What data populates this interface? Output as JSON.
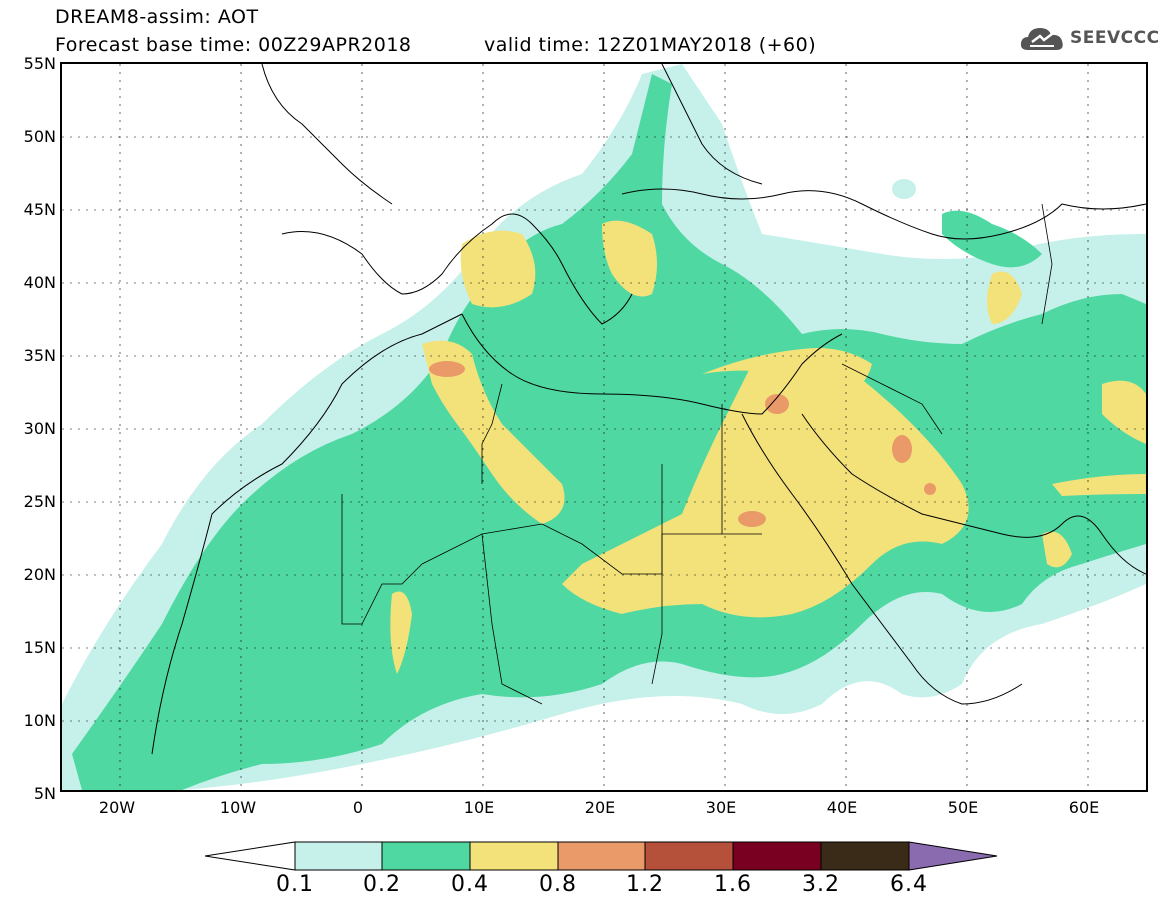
{
  "header": {
    "title": "DREAM8-assim: AOT",
    "base_time": "Forecast base time: 00Z29APR2018",
    "valid_time": "valid time: 12Z01MAY2018 (+60)"
  },
  "logo": {
    "text": "SEEVCCC",
    "icon": "cloud-icon"
  },
  "map": {
    "lat_labels": [
      "55N",
      "50N",
      "45N",
      "40N",
      "35N",
      "30N",
      "25N",
      "20N",
      "15N",
      "10N",
      "5N"
    ],
    "lon_labels": [
      "20W",
      "10W",
      "0",
      "10E",
      "20E",
      "30E",
      "40E",
      "50E",
      "60E"
    ],
    "lon_range": [
      -25,
      65
    ],
    "lat_range": [
      5,
      55
    ]
  },
  "colorbar": {
    "labels": [
      "0.1",
      "0.2",
      "0.4",
      "0.8",
      "1.2",
      "1.6",
      "3.2",
      "6.4"
    ],
    "colors": [
      "#ffffff",
      "#c6f0ea",
      "#4fd8a2",
      "#f3e27a",
      "#e99a68",
      "#b5503a",
      "#7a0022",
      "#3a2a18",
      "#8a6bb0"
    ]
  }
}
